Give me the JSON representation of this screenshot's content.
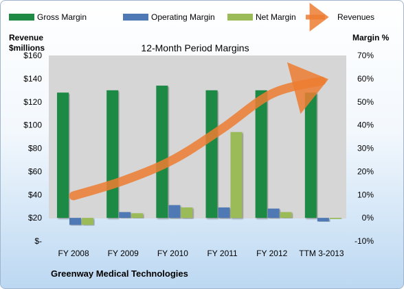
{
  "chart_data": {
    "type": "bar",
    "title": "12-Month Period Margins",
    "left_axis_label": [
      "Revenue",
      "$millions"
    ],
    "right_axis_label": "Margin %",
    "categories": [
      "FY 2008",
      "FY 2009",
      "FY 2010",
      "FY 2011",
      "FY 2012",
      "TTM 3-2013"
    ],
    "left_axis": {
      "min": 0,
      "max": 160,
      "step": 20,
      "tick_labels": [
        "$-",
        "$20",
        "$40",
        "$60",
        "$80",
        "$100",
        "$120",
        "$140",
        "$160"
      ]
    },
    "right_axis": {
      "min": -10,
      "max": 70,
      "step": 10,
      "tick_labels": [
        "-10%",
        "0%",
        "10%",
        "20%",
        "30%",
        "40%",
        "50%",
        "60%",
        "70%"
      ]
    },
    "series": [
      {
        "name": "Gross Margin",
        "type": "bar",
        "axis": "right",
        "color": "#1e8a44",
        "values": [
          54,
          55,
          57,
          55,
          55,
          54
        ]
      },
      {
        "name": "Operating Margin",
        "type": "bar",
        "axis": "right",
        "color": "#4f79b5",
        "values": [
          -3,
          2.5,
          5.5,
          4.5,
          4,
          -1.5
        ]
      },
      {
        "name": "Net Margin",
        "type": "bar",
        "axis": "right",
        "color": "#9bbb59",
        "values": [
          -3,
          2,
          4.5,
          37,
          2.5,
          -0.5
        ]
      },
      {
        "name": "Revenues",
        "type": "line",
        "axis": "left",
        "color": "#ed7d31",
        "values": [
          39,
          52,
          70,
          97,
          127,
          138
        ]
      }
    ],
    "legend_position": "top",
    "grid": false,
    "footer": "Greenway Medical Technologies"
  }
}
